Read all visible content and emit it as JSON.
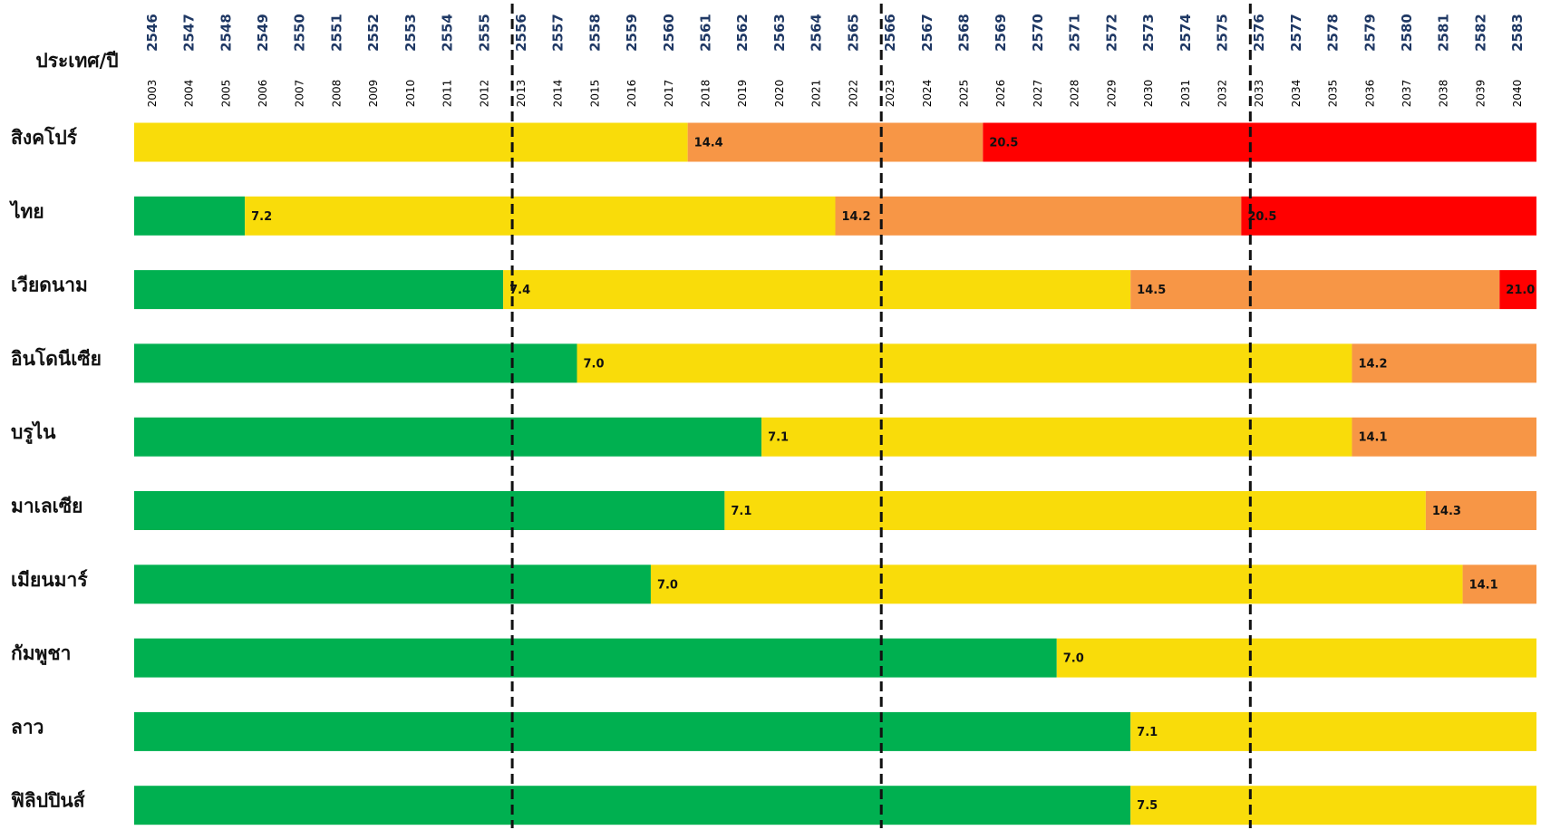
{
  "chart_data": {
    "type": "timeline",
    "header": "ประเทศ/ปี",
    "years_be": [
      "2546",
      "2547",
      "2548",
      "2549",
      "2550",
      "2551",
      "2552",
      "2553",
      "2554",
      "2555",
      "2556",
      "2557",
      "2558",
      "2559",
      "2560",
      "2561",
      "2562",
      "2563",
      "2564",
      "2565",
      "2566",
      "2567",
      "2568",
      "2569",
      "2570",
      "2571",
      "2572",
      "2573",
      "2574",
      "2575",
      "2576",
      "2577",
      "2578",
      "2579",
      "2580",
      "2581",
      "2582",
      "2583"
    ],
    "x": [
      2003,
      2004,
      2005,
      2006,
      2007,
      2008,
      2009,
      2010,
      2011,
      2012,
      2013,
      2014,
      2015,
      2016,
      2017,
      2018,
      2019,
      2020,
      2021,
      2022,
      2023,
      2024,
      2025,
      2026,
      2027,
      2028,
      2029,
      2030,
      2031,
      2032,
      2033,
      2034,
      2035,
      2036,
      2037,
      2038,
      2039,
      2040
    ],
    "xlim": [
      2003,
      2041
    ],
    "markers": [
      2013,
      2023,
      2033
    ],
    "rows": [
      {
        "name": "สิงคโปร์",
        "segments": [
          {
            "start": 2003,
            "color": "#f9dc0a"
          },
          {
            "start": 2018,
            "value": 14.4,
            "value_label": "14.4",
            "color": "#f79646"
          },
          {
            "start": 2026,
            "value": 20.5,
            "value_label": "20.5",
            "color": "#ff0000"
          }
        ]
      },
      {
        "name": "ไทย",
        "segments": [
          {
            "start": 2003,
            "color": "#00b050"
          },
          {
            "start": 2006,
            "value": 7.2,
            "value_label": "7.2",
            "color": "#f9dc0a"
          },
          {
            "start": 2022,
            "value": 14.2,
            "value_label": "14.2",
            "color": "#f79646"
          },
          {
            "start": 2033,
            "value": 20.5,
            "value_label": "20.5",
            "color": "#ff0000"
          }
        ]
      },
      {
        "name": "เวียดนาม",
        "segments": [
          {
            "start": 2003,
            "color": "#00b050"
          },
          {
            "start": 2013,
            "value": 7.4,
            "value_label": "7.4",
            "color": "#f9dc0a"
          },
          {
            "start": 2030,
            "value": 14.5,
            "value_label": "14.5",
            "color": "#f79646"
          },
          {
            "start": 2040,
            "value": 21,
            "value_label": "21.0",
            "color": "#ff0000"
          }
        ]
      },
      {
        "name": "อินโดนีเซีย",
        "segments": [
          {
            "start": 2003,
            "color": "#00b050"
          },
          {
            "start": 2015,
            "value": 7,
            "value_label": "7.0",
            "color": "#f9dc0a"
          },
          {
            "start": 2036,
            "value": 14.2,
            "value_label": "14.2",
            "color": "#f79646"
          }
        ]
      },
      {
        "name": "บรูไน",
        "segments": [
          {
            "start": 2003,
            "color": "#00b050"
          },
          {
            "start": 2020,
            "value": 7.1,
            "value_label": "7.1",
            "color": "#f9dc0a"
          },
          {
            "start": 2036,
            "value": 14.1,
            "value_label": "14.1",
            "color": "#f79646"
          }
        ]
      },
      {
        "name": "มาเลเซีย",
        "segments": [
          {
            "start": 2003,
            "color": "#00b050"
          },
          {
            "start": 2019,
            "value": 7.1,
            "value_label": "7.1",
            "color": "#f9dc0a"
          },
          {
            "start": 2038,
            "value": 14.3,
            "value_label": "14.3",
            "color": "#f79646"
          }
        ]
      },
      {
        "name": "เมียนมาร์",
        "segments": [
          {
            "start": 2003,
            "color": "#00b050"
          },
          {
            "start": 2017,
            "value": 7,
            "value_label": "7.0",
            "color": "#f9dc0a"
          },
          {
            "start": 2039,
            "value": 14.1,
            "value_label": "14.1",
            "color": "#f79646"
          }
        ]
      },
      {
        "name": "กัมพูชา",
        "segments": [
          {
            "start": 2003,
            "color": "#00b050"
          },
          {
            "start": 2028,
            "value": 7,
            "value_label": "7.0",
            "color": "#f9dc0a"
          }
        ]
      },
      {
        "name": "ลาว",
        "segments": [
          {
            "start": 2003,
            "color": "#00b050"
          },
          {
            "start": 2030,
            "value": 7.1,
            "value_label": "7.1",
            "color": "#f9dc0a"
          }
        ]
      },
      {
        "name": "ฟิลิปปินส์",
        "segments": [
          {
            "start": 2003,
            "color": "#00b050"
          },
          {
            "start": 2030,
            "value": 7.5,
            "value_label": "7.5",
            "color": "#f9dc0a"
          }
        ]
      }
    ]
  }
}
